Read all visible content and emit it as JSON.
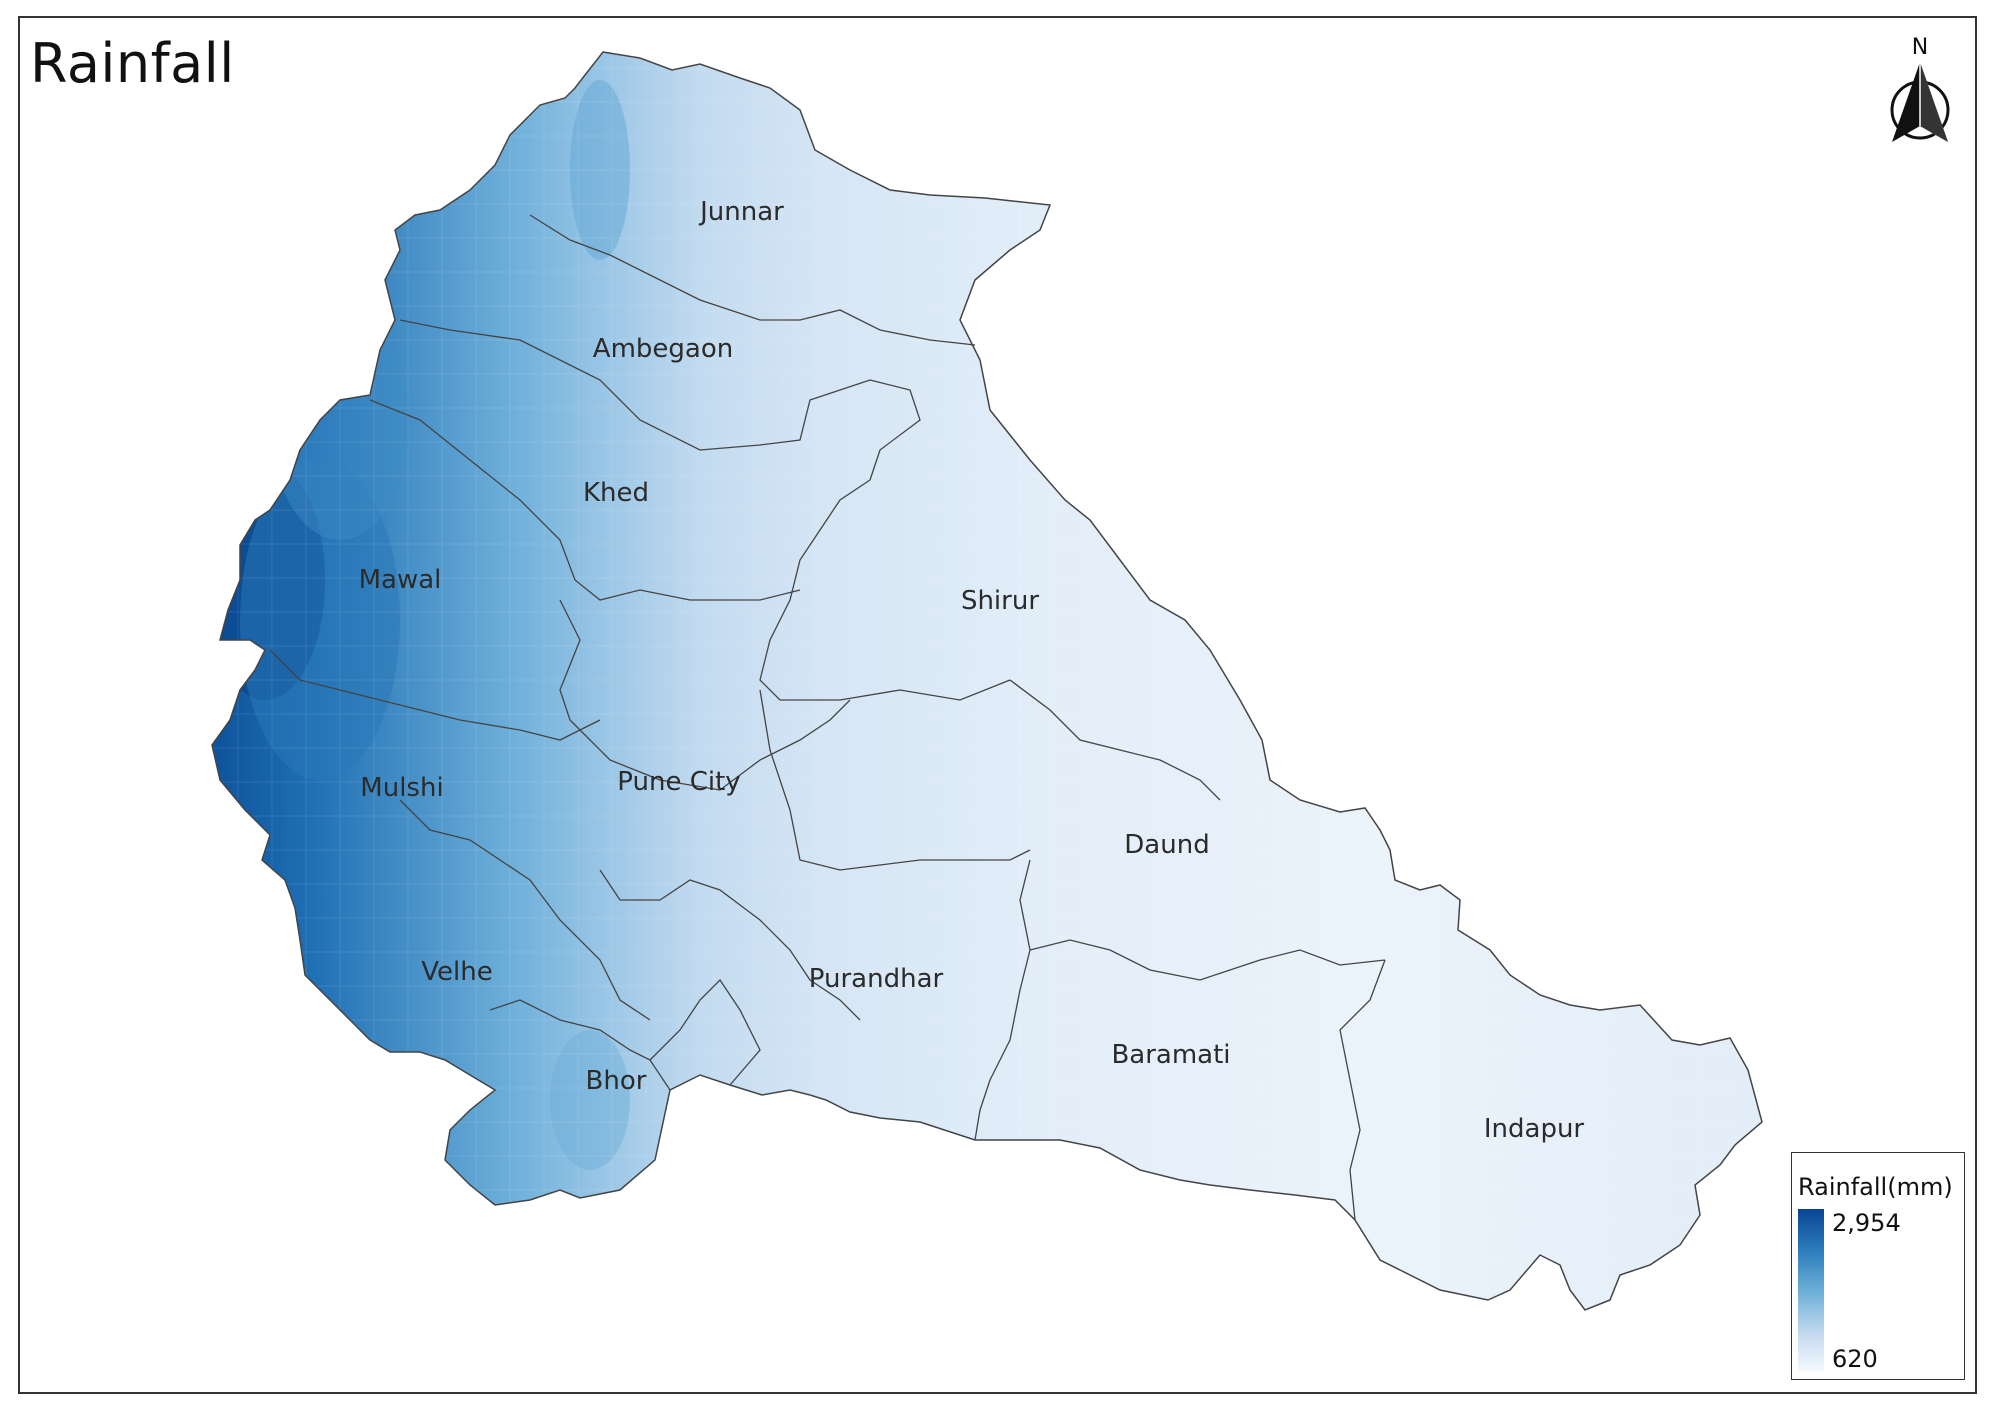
{
  "map": {
    "title": "Rainfall",
    "north_label": "N",
    "legend": {
      "title": "Rainfall(mm)",
      "max_label": "2,954",
      "min_label": "620",
      "colors": {
        "high": "#084594",
        "mid": "#6aaed6",
        "low": "#f4f8fc"
      }
    },
    "districts": [
      {
        "name": "Junnar",
        "label": "Junnar"
      },
      {
        "name": "Ambegaon",
        "label": "Ambegaon"
      },
      {
        "name": "Khed",
        "label": "Khed"
      },
      {
        "name": "Mawal",
        "label": "Mawal"
      },
      {
        "name": "Shirur",
        "label": "Shirur"
      },
      {
        "name": "Mulshi",
        "label": "Mulshi"
      },
      {
        "name": "Pune City",
        "label": "Pune City"
      },
      {
        "name": "Daund",
        "label": "Daund"
      },
      {
        "name": "Velhe",
        "label": "Velhe"
      },
      {
        "name": "Purandhar",
        "label": "Purandhar"
      },
      {
        "name": "Baramati",
        "label": "Baramati"
      },
      {
        "name": "Bhor",
        "label": "Bhor"
      },
      {
        "name": "Indapur",
        "label": "Indapur"
      }
    ],
    "border_color": "#444444"
  }
}
